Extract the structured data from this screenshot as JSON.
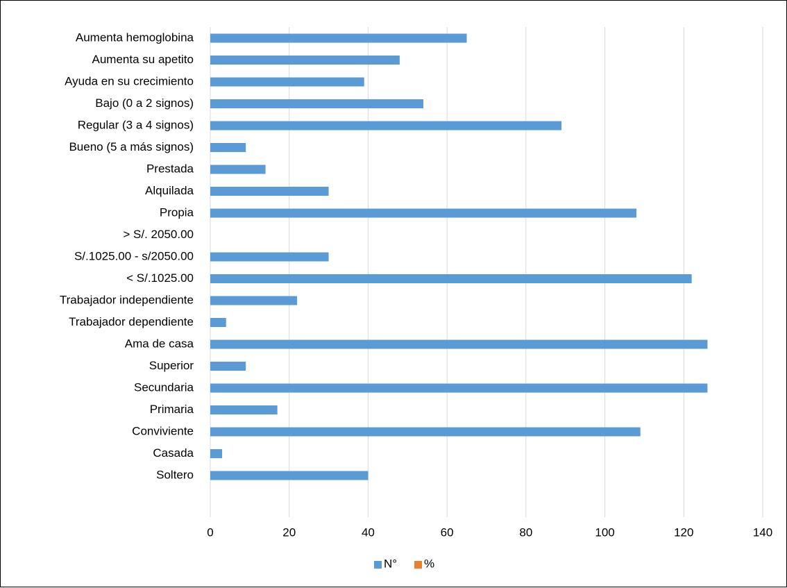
{
  "chart_data": {
    "type": "bar",
    "orientation": "horizontal",
    "categories": [
      "Aumenta hemoglobina",
      "Aumenta su apetito",
      "Ayuda en su crecimiento",
      "Bajo (0 a 2 signos)",
      "Regular (3 a 4 signos)",
      "Bueno (5 a más signos)",
      "Prestada",
      "Alquilada",
      "Propia",
      "> S/. 2050.00",
      "S/.1025.00 - s/2050.00",
      "< S/.1025.00",
      "Trabajador independiente",
      "Trabajador dependiente",
      "Ama de casa",
      "Superior",
      "Secundaria",
      "Primaria",
      "Conviviente",
      "Casada",
      "Soltero"
    ],
    "series": [
      {
        "name": "N°",
        "color": "#5B9BD5",
        "values": [
          65,
          48,
          39,
          54,
          89,
          9,
          14,
          30,
          108,
          0,
          30,
          122,
          22,
          4,
          126,
          9,
          126,
          17,
          109,
          3,
          40
        ]
      },
      {
        "name": "%",
        "color": "#ED7D31",
        "values": [
          0,
          0,
          0,
          0,
          0,
          0,
          0,
          0,
          0,
          0,
          0,
          0,
          0,
          0,
          0,
          0,
          0,
          0,
          0,
          0,
          0
        ]
      }
    ],
    "xlim": [
      0,
      140
    ],
    "xticks": [
      "0",
      "20",
      "40",
      "60",
      "80",
      "100",
      "120",
      "140"
    ],
    "gridlines": "vertical",
    "legend_position": "bottom"
  }
}
